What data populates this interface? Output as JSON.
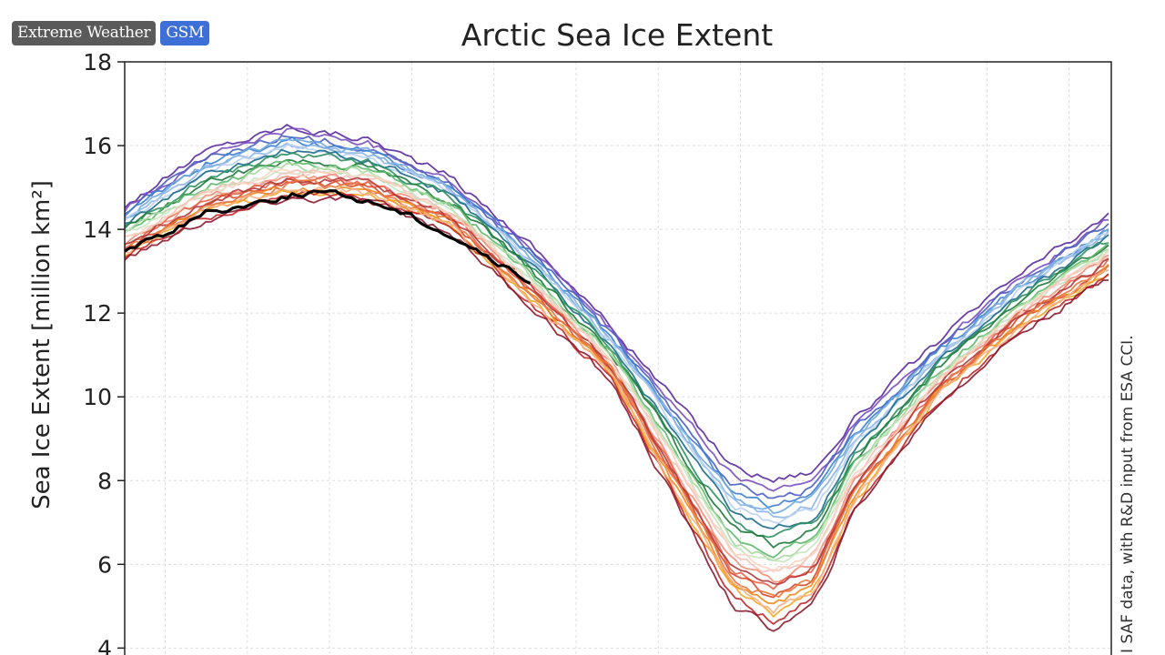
{
  "tags": [
    {
      "label": "Extreme Weather",
      "color": "#5a5a5a"
    },
    {
      "label": "GSM",
      "color": "#3d6fd6"
    }
  ],
  "chart_data": {
    "type": "line",
    "title": "Arctic Sea Ice Extent",
    "ylabel": "Sea Ice Extent [million km²]",
    "xlabel": "",
    "ylim": [
      3.4,
      18
    ],
    "xlim": [
      0,
      365
    ],
    "y_ticks": [
      4,
      6,
      8,
      10,
      12,
      14,
      16,
      18
    ],
    "grid": true,
    "credit": "I SAF data, with R&D input from ESA CCI.",
    "envelope_day": [
      0,
      30,
      60,
      90,
      120,
      150,
      180,
      210,
      225,
      240,
      255,
      270,
      300,
      330,
      365
    ],
    "envelope_max": [
      14.6,
      15.9,
      16.5,
      16.2,
      15.3,
      13.7,
      11.7,
      9.5,
      8.4,
      8.1,
      8.3,
      9.5,
      11.3,
      12.9,
      14.4
    ],
    "envelope_min": [
      13.1,
      14.0,
      14.5,
      14.5,
      13.8,
      12.0,
      10.2,
      6.4,
      4.6,
      4.0,
      4.6,
      7.0,
      9.6,
      11.3,
      12.7
    ],
    "series": [
      {
        "name": "current year",
        "color": "#000000",
        "day": [
          0,
          15,
          30,
          45,
          60,
          70,
          80,
          95,
          110,
          125,
          140,
          150
        ],
        "values": [
          13.5,
          13.9,
          14.4,
          14.6,
          14.8,
          14.9,
          14.8,
          14.6,
          14.2,
          13.7,
          13.1,
          12.7
        ]
      }
    ],
    "historical_colors": [
      "#5b2a9e",
      "#7a4fc0",
      "#4a5fc0",
      "#3c7fd0",
      "#6fa8dc",
      "#8cb4e8",
      "#b9d0f0",
      "#1a6b8a",
      "#2c8f5e",
      "#1e7a3c",
      "#5db86a",
      "#a8d8a0",
      "#c8e6c0",
      "#f4c2b8",
      "#f28e7a",
      "#e8644a",
      "#d84a2a",
      "#f08a1c",
      "#f5a623",
      "#c0282a",
      "#8b1a2e",
      "#b23a3a",
      "#e87840",
      "#f6b087",
      "#fbd4c2"
    ],
    "historical_offsets": [
      1.55,
      1.35,
      1.2,
      1.05,
      0.95,
      0.85,
      0.75,
      0.6,
      0.45,
      0.3,
      0.15,
      0.05,
      -0.05,
      -0.2,
      -0.35,
      -0.5,
      -0.65,
      -0.8,
      -0.95,
      -1.1,
      -1.25,
      -0.45,
      -0.7,
      -0.9,
      -0.15
    ]
  }
}
